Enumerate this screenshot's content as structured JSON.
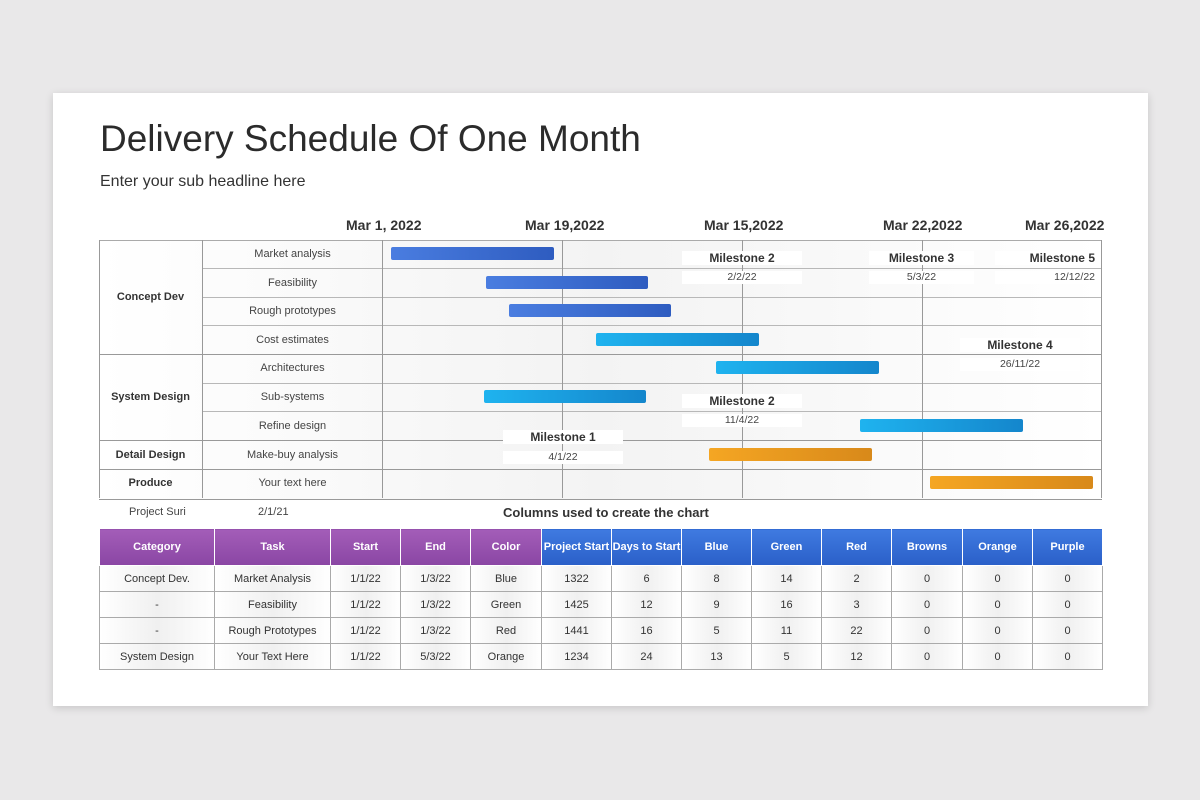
{
  "title": "Delivery Schedule Of One Month",
  "subtitle": "Enter your sub headline here",
  "date_headers": [
    "Mar 1, 2022",
    "Mar 19,2022",
    "Mar 15,2022",
    "Mar 22,2022",
    "Mar 26,2022"
  ],
  "categories": [
    "Concept Dev",
    "System Design",
    "Detail Design",
    "Produce"
  ],
  "tasks": [
    "Market analysis",
    "Feasibility",
    "Rough prototypes",
    "Cost estimates",
    "Architectures",
    "Sub-systems",
    "Refine design",
    "Make-buy analysis",
    "Your text here"
  ],
  "bar_colors": {
    "blue": "#3a6fd8",
    "cyan": "#1aa3e6",
    "orange": "#efa020"
  },
  "milestones": [
    {
      "name": "Milestone 2",
      "date": "2/2/22"
    },
    {
      "name": "Milestone 3",
      "date": "5/3/22"
    },
    {
      "name": "Milestone 5",
      "date": "12/12/22"
    },
    {
      "name": "Milestone 4",
      "date": "26/11/22"
    },
    {
      "name": "Milestone 2",
      "date": "11/4/22"
    },
    {
      "name": "Milestone 1",
      "date": "4/1/22"
    }
  ],
  "project_label": "Project Suri",
  "project_date": "2/1/21",
  "table_caption": "Columns used to create the chart",
  "table": {
    "headers": [
      "Category",
      "Task",
      "Start",
      "End",
      "Color",
      "Project Start",
      "Days to Start",
      "Blue",
      "Green",
      "Red",
      "Browns",
      "Orange",
      "Purple"
    ],
    "header_colors": {
      "purple": "#9b52b2",
      "blue": "#3570d8"
    },
    "rows": [
      [
        "Concept Dev.",
        "Market Analysis",
        "1/1/22",
        "1/3/22",
        "Blue",
        "1322",
        "6",
        "8",
        "14",
        "2",
        "0",
        "0",
        "0"
      ],
      [
        "-",
        "Feasibility",
        "1/1/22",
        "1/3/22",
        "Green",
        "1425",
        "12",
        "9",
        "16",
        "3",
        "0",
        "0",
        "0"
      ],
      [
        "-",
        "Rough Prototypes",
        "1/1/22",
        "1/3/22",
        "Red",
        "1441",
        "16",
        "5",
        "11",
        "22",
        "0",
        "0",
        "0"
      ],
      [
        "System Design",
        "Your Text Here",
        "1/1/22",
        "5/3/22",
        "Orange",
        "1234",
        "24",
        "13",
        "5",
        "12",
        "0",
        "0",
        "0"
      ]
    ]
  }
}
